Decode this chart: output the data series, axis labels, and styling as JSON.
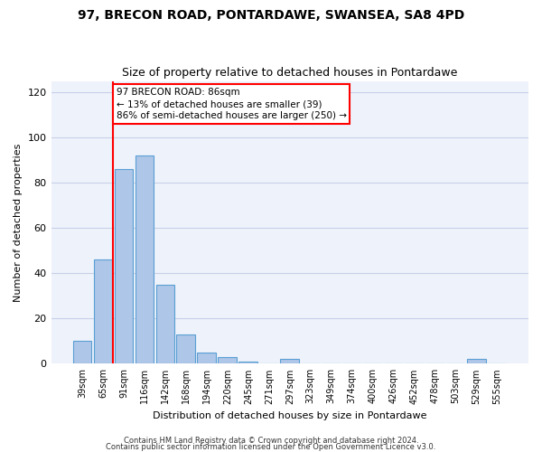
{
  "title1": "97, BRECON ROAD, PONTARDAWE, SWANSEA, SA8 4PD",
  "title2": "Size of property relative to detached houses in Pontardawe",
  "xlabel": "Distribution of detached houses by size in Pontardawe",
  "ylabel": "Number of detached properties",
  "categories": [
    "39sqm",
    "65sqm",
    "91sqm",
    "116sqm",
    "142sqm",
    "168sqm",
    "194sqm",
    "220sqm",
    "245sqm",
    "271sqm",
    "297sqm",
    "323sqm",
    "349sqm",
    "374sqm",
    "400sqm",
    "426sqm",
    "452sqm",
    "478sqm",
    "503sqm",
    "529sqm",
    "555sqm"
  ],
  "values": [
    10,
    46,
    86,
    92,
    35,
    13,
    5,
    3,
    1,
    0,
    2,
    0,
    0,
    0,
    0,
    0,
    0,
    0,
    0,
    2,
    0
  ],
  "bar_color": "#aec6e8",
  "bar_edge_color": "#5a9fd4",
  "vline_x_index": 2,
  "annotation_text1": "97 BRECON ROAD: 86sqm",
  "annotation_text2": "← 13% of detached houses are smaller (39)",
  "annotation_text3": "86% of semi-detached houses are larger (250) →",
  "annotation_box_color": "white",
  "annotation_box_edge_color": "red",
  "vline_color": "red",
  "ylim": [
    0,
    125
  ],
  "yticks": [
    0,
    20,
    40,
    60,
    80,
    100,
    120
  ],
  "footer1": "Contains HM Land Registry data © Crown copyright and database right 2024.",
  "footer2": "Contains public sector information licensed under the Open Government Licence v3.0.",
  "bg_color": "#eef2fb",
  "grid_color": "#c8d0e8",
  "title1_fontsize": 10,
  "title2_fontsize": 9,
  "xlabel_fontsize": 8,
  "ylabel_fontsize": 8,
  "tick_fontsize": 7,
  "footer_fontsize": 6,
  "annot_fontsize": 7.5
}
